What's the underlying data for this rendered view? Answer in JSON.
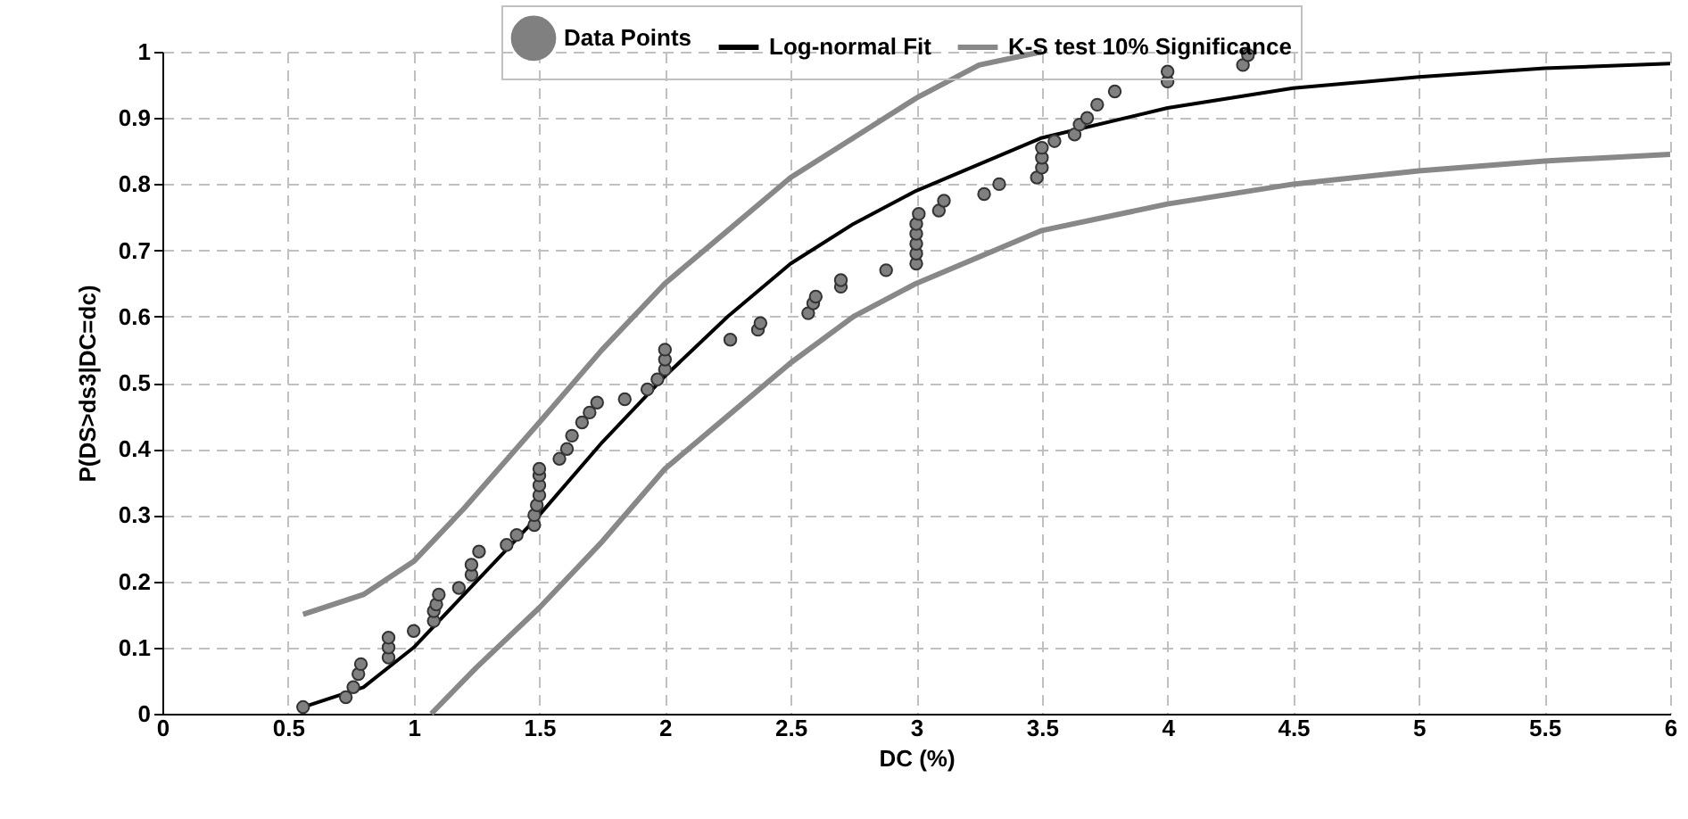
{
  "chart_data": {
    "type": "line",
    "xlabel": "DC (%)",
    "ylabel": "P(DS>ds3|DC=dc)",
    "xlim": [
      0,
      6
    ],
    "ylim": [
      0,
      1
    ],
    "xticks": [
      0,
      0.5,
      1,
      1.5,
      2,
      2.5,
      3,
      3.5,
      4,
      4.5,
      5,
      5.5,
      6
    ],
    "yticks": [
      0,
      0.1,
      0.2,
      0.3,
      0.4,
      0.5,
      0.6,
      0.7,
      0.8,
      0.9,
      1
    ],
    "grid": true,
    "legend": "top",
    "line_style": "solid",
    "series": [
      {
        "name": "Data Points",
        "type": "scatter",
        "marker": "circle",
        "color": "#808080",
        "x": [
          0.56,
          0.73,
          0.76,
          0.78,
          0.79,
          0.9,
          0.9,
          0.9,
          1.0,
          1.08,
          1.08,
          1.09,
          1.1,
          1.18,
          1.23,
          1.23,
          1.26,
          1.37,
          1.41,
          1.48,
          1.48,
          1.49,
          1.5,
          1.5,
          1.5,
          1.5,
          1.58,
          1.61,
          1.63,
          1.67,
          1.7,
          1.73,
          1.84,
          1.93,
          1.97,
          2.0,
          2.0,
          2.0,
          2.26,
          2.37,
          2.38,
          2.57,
          2.59,
          2.6,
          2.7,
          2.7,
          2.88,
          3.0,
          3.0,
          3.0,
          3.0,
          3.0,
          3.01,
          3.09,
          3.11,
          3.27,
          3.33,
          3.48,
          3.5,
          3.5,
          3.5,
          3.55,
          3.63,
          3.65,
          3.68,
          3.72,
          3.79,
          4.0,
          4.0,
          4.3,
          4.32
        ],
        "values": [
          0.01,
          0.025,
          0.04,
          0.06,
          0.075,
          0.085,
          0.1,
          0.115,
          0.125,
          0.14,
          0.155,
          0.165,
          0.18,
          0.19,
          0.21,
          0.225,
          0.245,
          0.255,
          0.27,
          0.285,
          0.3,
          0.315,
          0.33,
          0.345,
          0.36,
          0.37,
          0.385,
          0.4,
          0.42,
          0.44,
          0.455,
          0.47,
          0.475,
          0.49,
          0.505,
          0.52,
          0.535,
          0.55,
          0.565,
          0.58,
          0.59,
          0.605,
          0.62,
          0.63,
          0.645,
          0.655,
          0.67,
          0.68,
          0.695,
          0.71,
          0.725,
          0.74,
          0.755,
          0.76,
          0.775,
          0.785,
          0.8,
          0.81,
          0.825,
          0.84,
          0.855,
          0.865,
          0.875,
          0.89,
          0.9,
          0.92,
          0.94,
          0.955,
          0.97,
          0.98,
          0.995
        ]
      },
      {
        "name": "Log-normal Fit",
        "color": "#000000",
        "x": [
          0.56,
          0.8,
          1.0,
          1.2,
          1.5,
          1.75,
          2,
          2.25,
          2.5,
          2.75,
          3,
          3.5,
          4,
          4.5,
          5,
          5.5,
          6
        ],
        "values": [
          0.01,
          0.04,
          0.1,
          0.18,
          0.3,
          0.41,
          0.51,
          0.6,
          0.68,
          0.74,
          0.79,
          0.87,
          0.915,
          0.945,
          0.962,
          0.975,
          0.982
        ]
      },
      {
        "name": "K-S test 10% Significance",
        "color": "#888888",
        "x": [
          0.56,
          0.8,
          1.0,
          1.2,
          1.5,
          1.75,
          2,
          2.25,
          2.5,
          2.75,
          3,
          3.25,
          3.5
        ],
        "values": [
          0.15,
          0.18,
          0.23,
          0.31,
          0.44,
          0.55,
          0.65,
          0.73,
          0.81,
          0.87,
          0.93,
          0.98,
          1.0
        ]
      },
      {
        "color": "#888888",
        "x": [
          1.07,
          1.25,
          1.5,
          1.75,
          2,
          2.25,
          2.5,
          2.75,
          3,
          3.5,
          4,
          4.5,
          5,
          5.5,
          6
        ],
        "values": [
          0,
          0.07,
          0.16,
          0.26,
          0.37,
          0.45,
          0.53,
          0.6,
          0.65,
          0.73,
          0.77,
          0.8,
          0.82,
          0.835,
          0.845
        ]
      }
    ]
  }
}
